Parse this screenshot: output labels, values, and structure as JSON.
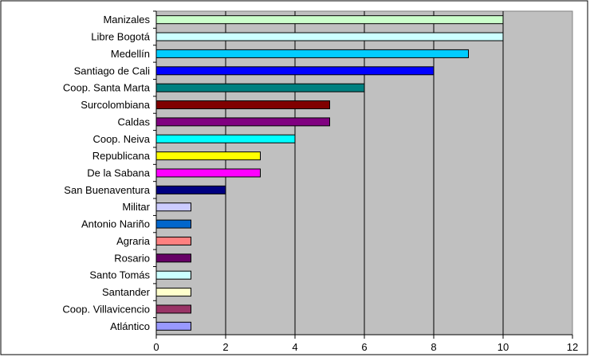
{
  "chart_data": {
    "type": "bar",
    "orientation": "horizontal",
    "title": "",
    "xlabel": "",
    "ylabel": "",
    "xlim": [
      0,
      12
    ],
    "x_ticks": [
      "0",
      "2",
      "4",
      "6",
      "8",
      "10",
      "12"
    ],
    "grid": "vertical",
    "legend": "none",
    "plot_background": "#c0c0c0",
    "categories": [
      "Manizales",
      "Libre Bogotá",
      "Medellín",
      "Santiago de Cali",
      "Coop. Santa Marta",
      "Surcolombiana",
      "Caldas",
      "Coop. Neiva",
      "Republicana",
      "De la Sabana",
      "San Buenaventura",
      "Militar",
      "Antonio Nariño",
      "Agraria",
      "Rosario",
      "Santo Tomás",
      "Santander",
      "Coop. Villavicencio",
      "Atlántico"
    ],
    "values": [
      10,
      10,
      9,
      8,
      6,
      5,
      5,
      4,
      3,
      3,
      2,
      1,
      1,
      1,
      1,
      1,
      1,
      1,
      1
    ],
    "colors": [
      "#ccffcc",
      "#ccffff",
      "#00ccff",
      "#0000ff",
      "#008080",
      "#800000",
      "#800080",
      "#00ffff",
      "#ffff00",
      "#ff00ff",
      "#000080",
      "#ccccff",
      "#0066cc",
      "#ff8080",
      "#660066",
      "#ccffff",
      "#ffffcc",
      "#993366",
      "#9999ff"
    ]
  }
}
